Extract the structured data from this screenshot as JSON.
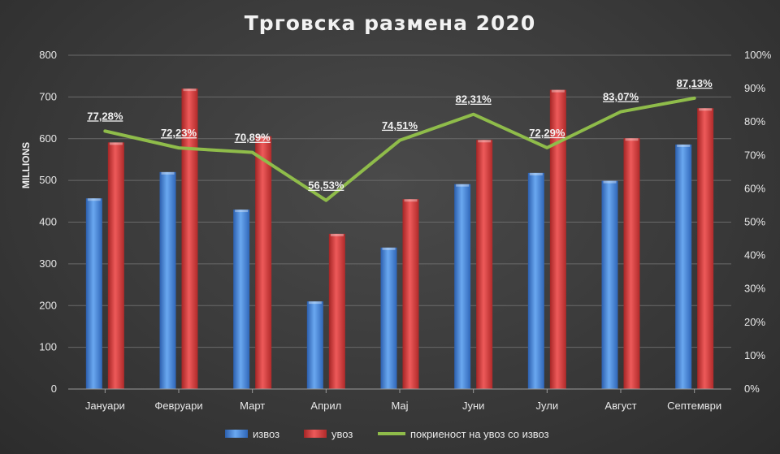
{
  "chart_data": {
    "type": "bar",
    "title": "Трговска размена 2020",
    "ylabel": "MILLIONS",
    "categories": [
      "Јануари",
      "Февруари",
      "Март",
      "Април",
      "Мај",
      "Јуни",
      "Јули",
      "Август",
      "Септември"
    ],
    "ylim": [
      0,
      800
    ],
    "yticks": [
      "0",
      "100",
      "200",
      "300",
      "400",
      "500",
      "600",
      "700",
      "800"
    ],
    "y2lim": [
      0,
      100
    ],
    "y2ticks": [
      "0%",
      "10%",
      "20%",
      "30%",
      "40%",
      "50%",
      "60%",
      "70%",
      "80%",
      "90%",
      "100%"
    ],
    "series": [
      {
        "name": "извоз",
        "type": "bar",
        "axis": "left",
        "color": "#3a7fd5",
        "values": [
          457,
          520,
          430,
          210,
          339,
          491,
          518,
          499,
          586
        ]
      },
      {
        "name": "увоз",
        "type": "bar",
        "axis": "left",
        "color": "#d43a3a",
        "values": [
          591,
          720,
          606,
          372,
          455,
          597,
          717,
          601,
          673
        ]
      },
      {
        "name": "покриеност на увоз со извоз",
        "type": "line",
        "axis": "right",
        "color": "#8fbc4a",
        "values": [
          77.28,
          72.23,
          70.89,
          56.53,
          74.51,
          82.31,
          72.29,
          83.07,
          87.13
        ],
        "labels": [
          "77,28%",
          "72,23%",
          "70,89%",
          "56,53%",
          "74,51%",
          "82,31%",
          "72,29%",
          "83,07%",
          "87,13%"
        ]
      }
    ],
    "legend_position": "bottom",
    "grid": true
  }
}
